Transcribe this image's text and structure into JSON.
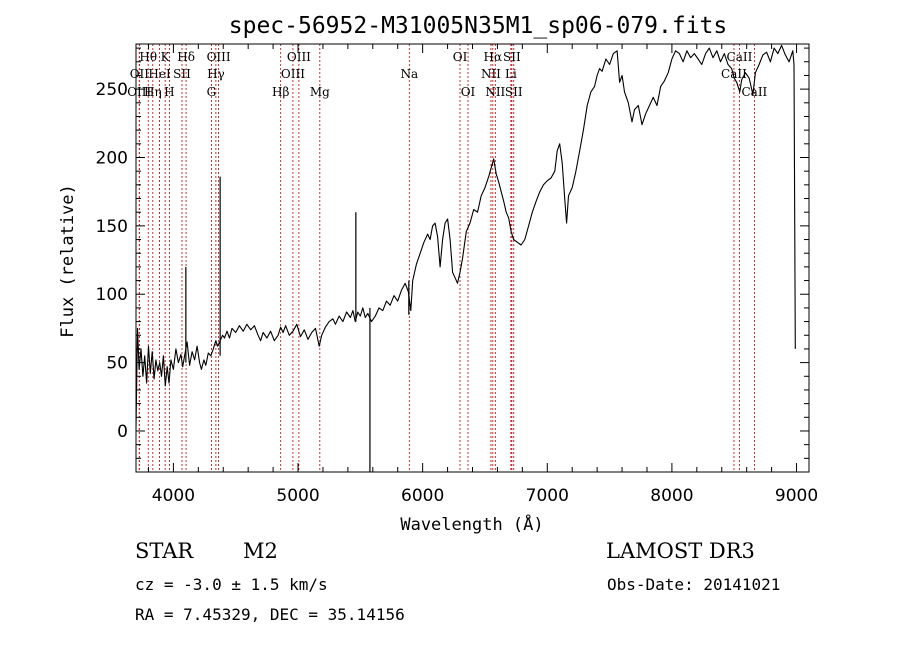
{
  "chart_data": {
    "type": "line",
    "title": "spec-56952-M31005N35M1_sp06-079.fits",
    "xlabel": "Wavelength (Å)",
    "ylabel": "Flux (relative)",
    "xlim": [
      3700,
      9100
    ],
    "ylim": [
      -30,
      283
    ],
    "x_ticks": [
      4000,
      5000,
      6000,
      7000,
      8000,
      9000
    ],
    "x_tick_labels": [
      "4000",
      "5000",
      "6000",
      "7000",
      "8000",
      "9000"
    ],
    "y_ticks": [
      0,
      50,
      100,
      150,
      200,
      250
    ],
    "y_tick_labels": [
      "0",
      "50",
      "100",
      "150",
      "200",
      "250"
    ],
    "spectrum": [
      [
        3700,
        2
      ],
      [
        3712,
        75
      ],
      [
        3725,
        45
      ],
      [
        3740,
        60
      ],
      [
        3755,
        40
      ],
      [
        3770,
        55
      ],
      [
        3785,
        35
      ],
      [
        3800,
        62
      ],
      [
        3815,
        42
      ],
      [
        3830,
        58
      ],
      [
        3845,
        38
      ],
      [
        3860,
        52
      ],
      [
        3875,
        44
      ],
      [
        3890,
        50
      ],
      [
        3905,
        40
      ],
      [
        3920,
        55
      ],
      [
        3935,
        33
      ],
      [
        3950,
        47
      ],
      [
        3965,
        35
      ],
      [
        3980,
        52
      ],
      [
        4000,
        45
      ],
      [
        4020,
        60
      ],
      [
        4040,
        50
      ],
      [
        4060,
        56
      ],
      [
        4075,
        47
      ],
      [
        4090,
        55
      ],
      [
        4110,
        65
      ],
      [
        4130,
        48
      ],
      [
        4150,
        58
      ],
      [
        4170,
        52
      ],
      [
        4190,
        62
      ],
      [
        4210,
        50
      ],
      [
        4225,
        45
      ],
      [
        4245,
        52
      ],
      [
        4260,
        48
      ],
      [
        4280,
        57
      ],
      [
        4300,
        55
      ],
      [
        4320,
        60
      ],
      [
        4340,
        66
      ],
      [
        4355,
        62
      ],
      [
        4370,
        65
      ],
      [
        4380,
        67
      ],
      [
        4395,
        70
      ],
      [
        4410,
        68
      ],
      [
        4430,
        73
      ],
      [
        4450,
        68
      ],
      [
        4470,
        75
      ],
      [
        4500,
        72
      ],
      [
        4530,
        77
      ],
      [
        4560,
        73
      ],
      [
        4590,
        78
      ],
      [
        4620,
        74
      ],
      [
        4650,
        77
      ],
      [
        4680,
        70
      ],
      [
        4700,
        66
      ],
      [
        4720,
        72
      ],
      [
        4750,
        68
      ],
      [
        4780,
        73
      ],
      [
        4810,
        66
      ],
      [
        4840,
        70
      ],
      [
        4860,
        76
      ],
      [
        4880,
        72
      ],
      [
        4900,
        77
      ],
      [
        4930,
        70
      ],
      [
        4960,
        73
      ],
      [
        4990,
        78
      ],
      [
        5020,
        69
      ],
      [
        5050,
        74
      ],
      [
        5080,
        67
      ],
      [
        5110,
        72
      ],
      [
        5140,
        75
      ],
      [
        5170,
        62
      ],
      [
        5190,
        70
      ],
      [
        5220,
        76
      ],
      [
        5250,
        80
      ],
      [
        5280,
        82
      ],
      [
        5300,
        78
      ],
      [
        5330,
        84
      ],
      [
        5360,
        80
      ],
      [
        5390,
        87
      ],
      [
        5420,
        83
      ],
      [
        5440,
        88
      ],
      [
        5460,
        80
      ],
      [
        5480,
        87
      ],
      [
        5500,
        84
      ],
      [
        5520,
        90
      ],
      [
        5540,
        83
      ],
      [
        5560,
        86
      ],
      [
        5590,
        80
      ],
      [
        5620,
        84
      ],
      [
        5650,
        90
      ],
      [
        5680,
        88
      ],
      [
        5710,
        95
      ],
      [
        5740,
        92
      ],
      [
        5770,
        99
      ],
      [
        5800,
        95
      ],
      [
        5830,
        103
      ],
      [
        5860,
        108
      ],
      [
        5885,
        102
      ],
      [
        5905,
        88
      ],
      [
        5920,
        110
      ],
      [
        5950,
        122
      ],
      [
        5980,
        130
      ],
      [
        6010,
        138
      ],
      [
        6040,
        144
      ],
      [
        6060,
        140
      ],
      [
        6080,
        150
      ],
      [
        6100,
        152
      ],
      [
        6120,
        142
      ],
      [
        6140,
        120
      ],
      [
        6160,
        140
      ],
      [
        6180,
        152
      ],
      [
        6200,
        155
      ],
      [
        6220,
        140
      ],
      [
        6240,
        116
      ],
      [
        6260,
        112
      ],
      [
        6280,
        108
      ],
      [
        6300,
        116
      ],
      [
        6320,
        126
      ],
      [
        6350,
        146
      ],
      [
        6380,
        152
      ],
      [
        6410,
        162
      ],
      [
        6440,
        160
      ],
      [
        6470,
        172
      ],
      [
        6500,
        178
      ],
      [
        6530,
        186
      ],
      [
        6555,
        194
      ],
      [
        6570,
        199
      ],
      [
        6590,
        188
      ],
      [
        6610,
        182
      ],
      [
        6630,
        175
      ],
      [
        6650,
        168
      ],
      [
        6670,
        160
      ],
      [
        6690,
        156
      ],
      [
        6710,
        146
      ],
      [
        6730,
        140
      ],
      [
        6760,
        138
      ],
      [
        6790,
        136
      ],
      [
        6820,
        140
      ],
      [
        6850,
        150
      ],
      [
        6880,
        160
      ],
      [
        6910,
        168
      ],
      [
        6940,
        175
      ],
      [
        6970,
        180
      ],
      [
        7000,
        183
      ],
      [
        7030,
        185
      ],
      [
        7060,
        190
      ],
      [
        7080,
        205
      ],
      [
        7100,
        210
      ],
      [
        7120,
        196
      ],
      [
        7140,
        170
      ],
      [
        7155,
        152
      ],
      [
        7170,
        172
      ],
      [
        7200,
        178
      ],
      [
        7230,
        190
      ],
      [
        7260,
        205
      ],
      [
        7290,
        220
      ],
      [
        7320,
        238
      ],
      [
        7350,
        248
      ],
      [
        7380,
        252
      ],
      [
        7400,
        260
      ],
      [
        7420,
        265
      ],
      [
        7440,
        263
      ],
      [
        7470,
        272
      ],
      [
        7500,
        268
      ],
      [
        7530,
        276
      ],
      [
        7560,
        278
      ],
      [
        7580,
        255
      ],
      [
        7600,
        260
      ],
      [
        7620,
        248
      ],
      [
        7650,
        240
      ],
      [
        7680,
        226
      ],
      [
        7700,
        235
      ],
      [
        7730,
        238
      ],
      [
        7760,
        224
      ],
      [
        7790,
        232
      ],
      [
        7820,
        238
      ],
      [
        7850,
        244
      ],
      [
        7880,
        238
      ],
      [
        7910,
        252
      ],
      [
        7940,
        256
      ],
      [
        7970,
        262
      ],
      [
        8000,
        272
      ],
      [
        8030,
        278
      ],
      [
        8060,
        276
      ],
      [
        8090,
        270
      ],
      [
        8120,
        278
      ],
      [
        8150,
        273
      ],
      [
        8180,
        276
      ],
      [
        8210,
        272
      ],
      [
        8240,
        268
      ],
      [
        8270,
        276
      ],
      [
        8300,
        280
      ],
      [
        8330,
        273
      ],
      [
        8360,
        278
      ],
      [
        8390,
        270
      ],
      [
        8420,
        276
      ],
      [
        8450,
        268
      ],
      [
        8480,
        265
      ],
      [
        8500,
        258
      ],
      [
        8520,
        255
      ],
      [
        8545,
        248
      ],
      [
        8560,
        257
      ],
      [
        8590,
        262
      ],
      [
        8620,
        258
      ],
      [
        8650,
        246
      ],
      [
        8670,
        262
      ],
      [
        8700,
        268
      ],
      [
        8730,
        275
      ],
      [
        8760,
        277
      ],
      [
        8790,
        270
      ],
      [
        8820,
        280
      ],
      [
        8850,
        276
      ],
      [
        8880,
        282
      ],
      [
        8910,
        275
      ],
      [
        8940,
        270
      ],
      [
        8970,
        278
      ],
      [
        8980,
        268
      ],
      [
        8990,
        60
      ]
    ],
    "spikes": [
      [
        4100,
        50,
        120
      ],
      [
        4375,
        55,
        186
      ],
      [
        5464,
        80,
        160
      ],
      [
        5577,
        90,
        -30
      ],
      [
        5889,
        85,
        110
      ]
    ],
    "lines": [
      {
        "name": "Hθ",
        "wl": 3798,
        "row": 1
      },
      {
        "name": "OII",
        "wl": 3727,
        "row": 2
      },
      {
        "name": "OIII",
        "wl": 3726,
        "row": 3
      },
      {
        "name": "K",
        "wl": 3934,
        "row": 1
      },
      {
        "name": "HeI",
        "wl": 3889,
        "row": 2
      },
      {
        "name": "Hη",
        "wl": 3835,
        "row": 3
      },
      {
        "name": "Hδ",
        "wl": 4102,
        "row": 1
      },
      {
        "name": "SII",
        "wl": 4069,
        "row": 2
      },
      {
        "name": "H",
        "wl": 3968,
        "row": 3
      },
      {
        "name": "OIII",
        "wl": 4363,
        "row": 1
      },
      {
        "name": "Hγ",
        "wl": 4341,
        "row": 2
      },
      {
        "name": "G",
        "wl": 4305,
        "row": 3
      },
      {
        "name": "Hβ",
        "wl": 4861,
        "row": 3
      },
      {
        "name": "OIII",
        "wl": 5007,
        "row": 1
      },
      {
        "name": "OIII",
        "wl": 4959,
        "row": 2
      },
      {
        "name": "Mg",
        "wl": 5175,
        "row": 3
      },
      {
        "name": "Na",
        "wl": 5893,
        "row": 2
      },
      {
        "name": "OI",
        "wl": 6300,
        "row": 1
      },
      {
        "name": "OI",
        "wl": 6364,
        "row": 3
      },
      {
        "name": "Hα",
        "wl": 6563,
        "row": 1
      },
      {
        "name": "SII",
        "wl": 6716,
        "row": 1
      },
      {
        "name": "NII",
        "wl": 6548,
        "row": 2
      },
      {
        "name": "Li",
        "wl": 6708,
        "row": 2
      },
      {
        "name": "NII",
        "wl": 6583,
        "row": 3
      },
      {
        "name": "SII",
        "wl": 6731,
        "row": 3
      },
      {
        "name": "CaII",
        "wl": 8542,
        "row": 1
      },
      {
        "name": "CaII",
        "wl": 8498,
        "row": 2
      },
      {
        "name": "CaII",
        "wl": 8662,
        "row": 3
      }
    ]
  },
  "info": {
    "object_type": "STAR",
    "subclass": "M2",
    "survey": "LAMOST DR3",
    "redshift": "cz = -3.0 ± 1.5 km/s",
    "obs_date": "Obs-Date: 20141021",
    "coords": "RA =   7.45329, DEC =  35.14156"
  }
}
